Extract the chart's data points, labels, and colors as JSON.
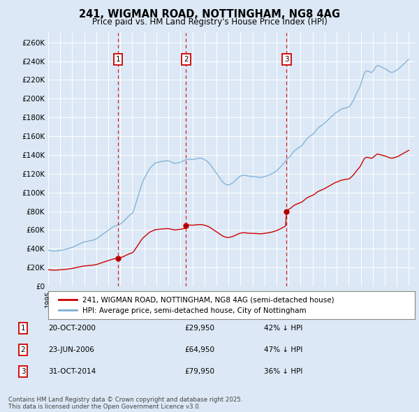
{
  "title": "241, WIGMAN ROAD, NOTTINGHAM, NG8 4AG",
  "subtitle": "Price paid vs. HM Land Registry's House Price Index (HPI)",
  "ylim": [
    0,
    270000
  ],
  "yticks": [
    0,
    20000,
    40000,
    60000,
    80000,
    100000,
    120000,
    140000,
    160000,
    180000,
    200000,
    220000,
    240000,
    260000
  ],
  "ytick_labels": [
    "£0",
    "£20K",
    "£40K",
    "£60K",
    "£80K",
    "£100K",
    "£120K",
    "£140K",
    "£160K",
    "£180K",
    "£200K",
    "£220K",
    "£240K",
    "£260K"
  ],
  "background_color": "#dce8f5",
  "plot_bg_color": "#dce8f5",
  "grid_color": "#ffffff",
  "sale_color": "#cc0000",
  "hpi_color": "#7bafd4",
  "sale_label": "241, WIGMAN ROAD, NOTTINGHAM, NG8 4AG (semi-detached house)",
  "hpi_label": "HPI: Average price, semi-detached house, City of Nottingham",
  "sales": [
    {
      "date_num": 2000.8,
      "price": 29950,
      "label": "1",
      "date_str": "20-OCT-2000",
      "pct": "42% ↓ HPI"
    },
    {
      "date_num": 2006.47,
      "price": 64950,
      "label": "2",
      "date_str": "23-JUN-2006",
      "pct": "47% ↓ HPI"
    },
    {
      "date_num": 2014.83,
      "price": 79950,
      "label": "3",
      "date_str": "31-OCT-2014",
      "pct": "36% ↓ HPI"
    }
  ],
  "footnote": "Contains HM Land Registry data © Crown copyright and database right 2025.\nThis data is licensed under the Open Government Licence v3.0.",
  "hpi_monthly": {
    "start_year": 1995.0,
    "step": 0.08333,
    "values": [
      38500,
      38300,
      38100,
      37900,
      37700,
      37600,
      37500,
      37600,
      37700,
      37800,
      38000,
      38200,
      38400,
      38500,
      38700,
      38900,
      39100,
      39400,
      39700,
      40000,
      40300,
      40600,
      40900,
      41200,
      41500,
      42000,
      42500,
      43000,
      43500,
      44000,
      44500,
      45000,
      45500,
      46000,
      46500,
      47000,
      47300,
      47500,
      47700,
      48000,
      48200,
      48400,
      48600,
      48800,
      49000,
      49300,
      49600,
      50000,
      50500,
      51200,
      52000,
      52800,
      53500,
      54300,
      55200,
      56000,
      56800,
      57500,
      58200,
      59000,
      59800,
      60500,
      61200,
      62000,
      62800,
      63400,
      63900,
      64400,
      64800,
      65200,
      65600,
      66000,
      66500,
      67200,
      68000,
      69000,
      70000,
      71200,
      72300,
      73400,
      74500,
      75500,
      76500,
      77000,
      78000,
      80000,
      83000,
      86500,
      90000,
      93500,
      97000,
      100500,
      104000,
      107500,
      110500,
      113000,
      115000,
      117000,
      119000,
      121000,
      123000,
      125000,
      126500,
      127500,
      128500,
      129500,
      130500,
      131500,
      131800,
      132000,
      132200,
      132500,
      132800,
      133000,
      133200,
      133400,
      133500,
      133600,
      133700,
      133800,
      133700,
      133400,
      133000,
      132500,
      132000,
      131500,
      131000,
      131000,
      131200,
      131500,
      131800,
      132000,
      132300,
      132700,
      133200,
      133700,
      134200,
      134700,
      135000,
      135300,
      135500,
      135500,
      135400,
      135200,
      135000,
      135200,
      135500,
      135800,
      136000,
      136200,
      136300,
      136500,
      136500,
      136300,
      136000,
      135700,
      135200,
      134500,
      133700,
      133000,
      132000,
      130800,
      129500,
      128000,
      126500,
      125000,
      123500,
      122000,
      120500,
      119000,
      117500,
      116000,
      114500,
      113000,
      111500,
      110500,
      109500,
      108800,
      108300,
      108000,
      108200,
      108500,
      109000,
      109500,
      110200,
      111000,
      112000,
      113000,
      114000,
      115000,
      116000,
      117000,
      117500,
      118000,
      118300,
      118500,
      118500,
      118300,
      118000,
      117700,
      117500,
      117300,
      117200,
      117000,
      117000,
      117000,
      117000,
      116800,
      116600,
      116400,
      116300,
      116200,
      116200,
      116300,
      116500,
      116800,
      117000,
      117300,
      117600,
      118000,
      118400,
      118800,
      119300,
      119800,
      120400,
      121000,
      121700,
      122400,
      123200,
      124200,
      125200,
      126200,
      127300,
      128500,
      129800,
      131000,
      132200,
      133500,
      134700,
      136000,
      137000,
      138000,
      139000,
      140500,
      142000,
      143500,
      144500,
      145500,
      146300,
      147000,
      147700,
      148300,
      149000,
      150000,
      151000,
      152500,
      154000,
      155500,
      157000,
      158000,
      159000,
      159800,
      160500,
      161200,
      162000,
      163000,
      164200,
      165500,
      167000,
      168200,
      169200,
      170000,
      170700,
      171500,
      172300,
      173000,
      174000,
      175000,
      176000,
      177000,
      178000,
      179000,
      180000,
      181000,
      182000,
      183000,
      184000,
      185000,
      185500,
      186200,
      187000,
      187800,
      188500,
      189000,
      189300,
      189600,
      189900,
      190200,
      190500,
      190800,
      191200,
      192000,
      193500,
      195000,
      197000,
      199000,
      201000,
      203500,
      206000,
      208000,
      210000,
      212000,
      215000,
      218500,
      222000,
      225500,
      228000,
      229000,
      229500,
      229500,
      229000,
      228500,
      228000,
      228000,
      229000,
      230500,
      232000,
      233500,
      235000,
      235500,
      235000,
      234500,
      234000,
      233500,
      233000,
      232500,
      232000,
      231500,
      230800,
      230000,
      229300,
      228700,
      228200,
      228000,
      228200,
      228700,
      229200,
      229800,
      230300,
      231000,
      232000,
      233000,
      234000,
      235000,
      236000,
      237000,
      238000,
      239000,
      240000,
      241000,
      242000
    ]
  },
  "xmin": 1995,
  "xmax": 2025.5
}
